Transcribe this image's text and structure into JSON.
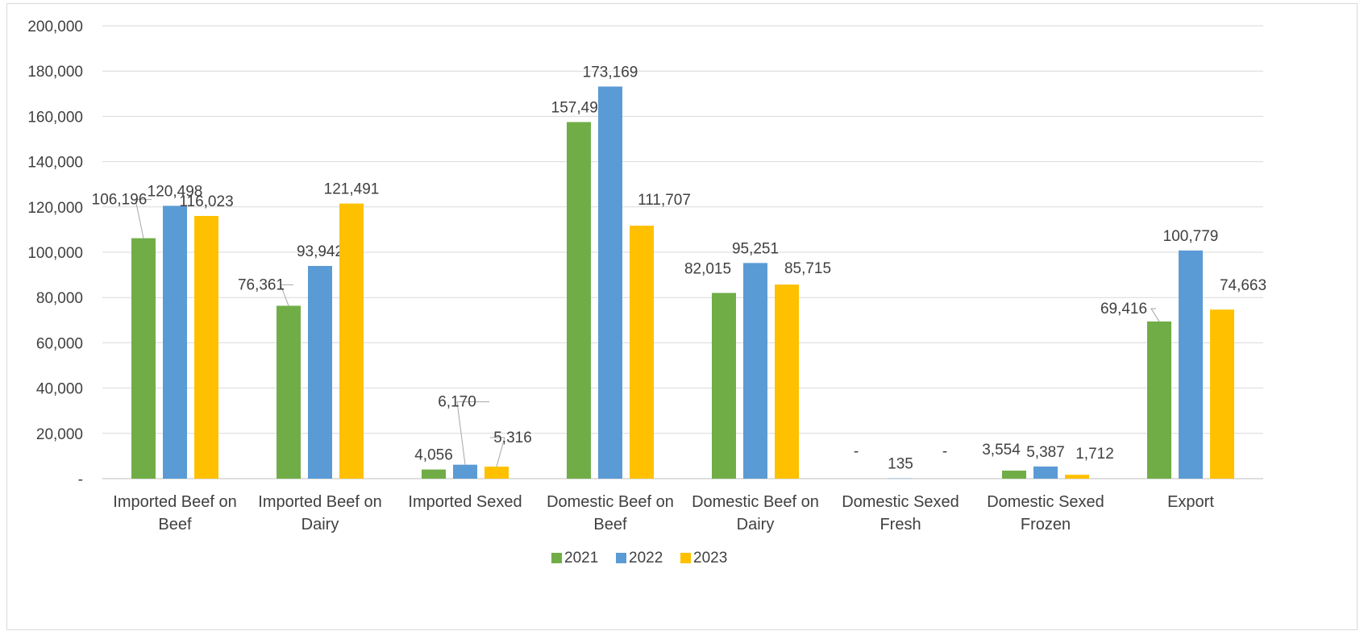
{
  "chart_data": {
    "type": "bar",
    "title": "",
    "xlabel": "",
    "ylabel": "",
    "ylim": [
      0,
      200000
    ],
    "y_ticks": [
      0,
      20000,
      40000,
      60000,
      80000,
      100000,
      120000,
      140000,
      160000,
      180000,
      200000
    ],
    "y_tick_labels": [
      "-",
      "20,000",
      "40,000",
      "60,000",
      "80,000",
      "100,000",
      "120,000",
      "140,000",
      "160,000",
      "180,000",
      "200,000"
    ],
    "grid": true,
    "legend_position": "bottom",
    "categories": [
      [
        "Imported Beef on",
        "Beef"
      ],
      [
        "Imported Beef on",
        "Dairy"
      ],
      [
        "Imported Sexed"
      ],
      [
        "Domestic Beef on",
        "Beef"
      ],
      [
        "Domestic Beef on",
        "Dairy"
      ],
      [
        "Domestic Sexed",
        "Fresh"
      ],
      [
        "Domestic Sexed",
        "Frozen"
      ],
      [
        "Export"
      ]
    ],
    "series": [
      {
        "name": "2021",
        "color": "#70ad47",
        "values": [
          106196,
          76361,
          4056,
          157493,
          82015,
          0,
          3554,
          69416
        ],
        "labels": [
          "106,196",
          "76,361",
          "4,056",
          "157,493",
          "82,015",
          "-",
          "3,554",
          "69,416"
        ]
      },
      {
        "name": "2022",
        "color": "#5b9bd5",
        "values": [
          120498,
          93942,
          6170,
          173169,
          95251,
          135,
          5387,
          100779
        ],
        "labels": [
          "120,498",
          "93,942",
          "6,170",
          "173,169",
          "95,251",
          "135",
          "5,387",
          "100,779"
        ]
      },
      {
        "name": "2023",
        "color": "#ffc000",
        "values": [
          116023,
          121491,
          5316,
          111707,
          85715,
          0,
          1712,
          74663
        ],
        "labels": [
          "116,023",
          "121,491",
          "5,316",
          "111,707",
          "85,715",
          "-",
          "1,712",
          "74,663"
        ]
      }
    ]
  }
}
